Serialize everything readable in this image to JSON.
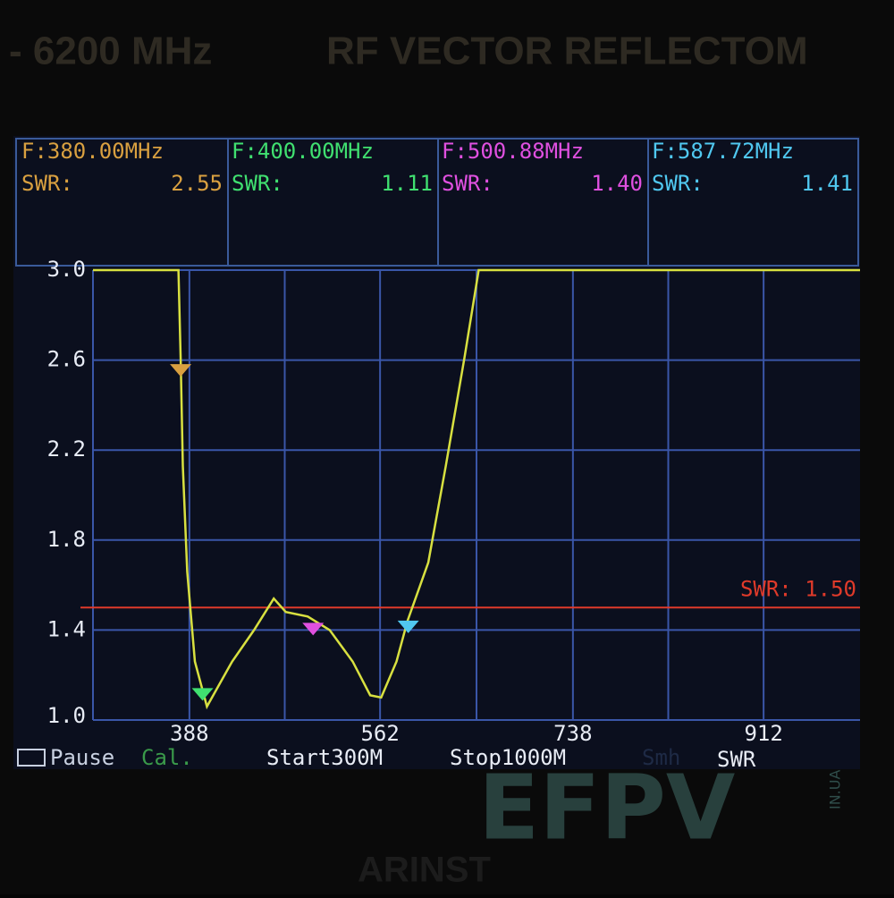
{
  "header": {
    "left": "- 6200 MHz",
    "right": "RF VECTOR REFLECTOM"
  },
  "chart_data": {
    "type": "line",
    "x": [
      300,
      378,
      380,
      382,
      386,
      393,
      404,
      427,
      447,
      465,
      476,
      496,
      516,
      537,
      553,
      563,
      577,
      587,
      606,
      622,
      639,
      652,
      1000
    ],
    "series": [
      {
        "color": "#d8e040",
        "values": [
          3.0,
          3.0,
          2.61,
          2.13,
          1.66,
          1.26,
          1.06,
          1.26,
          1.4,
          1.54,
          1.48,
          1.46,
          1.4,
          1.26,
          1.11,
          1.1,
          1.26,
          1.44,
          1.7,
          2.13,
          2.61,
          3.0,
          3.0
        ]
      }
    ],
    "xlim": [
      300,
      1000
    ],
    "xticks": [
      388,
      562,
      738,
      912
    ],
    "minor_xticks": [
      475,
      650,
      825
    ],
    "ylim": [
      1,
      3
    ],
    "yticks": [
      {
        "value": 1,
        "label": "1.0"
      },
      1.4,
      1.8,
      2.2,
      2.6,
      {
        "value": 3,
        "label": "3.0"
      }
    ],
    "grid": true,
    "markers": [
      {
        "frequency_text": "F:380.00MHz",
        "swr_text": "SWR:",
        "x": 380,
        "value": 2.55,
        "value_label": "2.55",
        "color": "#d9a040"
      },
      {
        "frequency_text": "F:400.00MHz",
        "swr_text": "SWR:",
        "x": 400,
        "value": 1.11,
        "value_label": "1.11",
        "color": "#40e070"
      },
      {
        "frequency_text": "F:500.88MHz",
        "swr_text": "SWR:",
        "x": 500.88,
        "value": 1.4,
        "value_label": "1.40",
        "color": "#e050e0"
      },
      {
        "frequency_text": "F:587.72MHz",
        "swr_text": "SWR:",
        "x": 587.72,
        "value": 1.41,
        "value_label": "1.41",
        "color": "#50c8f0"
      }
    ],
    "ref_line": {
      "value": 1.5,
      "label": "SWR: 1.50",
      "color": "#e03a2a"
    }
  },
  "status": {
    "pause": "Pause",
    "cal": "Cal.",
    "start": "Start300M",
    "stop": "Stop1000M",
    "smooth": "Smh",
    "mode": "SWR"
  },
  "watermark": {
    "brand": "EFPV",
    "domain": "IN.UA",
    "maker": "ARINST"
  }
}
